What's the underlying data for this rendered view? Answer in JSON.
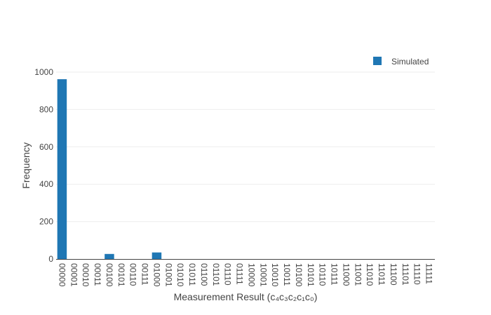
{
  "chart_data": {
    "type": "bar",
    "xlabel": "Measurement Result (c₄c₃c₂c₁c₀)",
    "ylabel": "Frequency",
    "ylim": [
      0,
      1000
    ],
    "yticks": [
      0,
      200,
      400,
      600,
      800,
      1000
    ],
    "grid": true,
    "legend_position": "top-right",
    "categories": [
      "00000",
      "00001",
      "00010",
      "00011",
      "00100",
      "00101",
      "00110",
      "00111",
      "01000",
      "01001",
      "01010",
      "01011",
      "01100",
      "01101",
      "01110",
      "01111",
      "10000",
      "10001",
      "10010",
      "10011",
      "10100",
      "10101",
      "10110",
      "10111",
      "11000",
      "11001",
      "11010",
      "11011",
      "11100",
      "11101",
      "11110",
      "11111"
    ],
    "series": [
      {
        "name": "Simulated",
        "color": "#1f77b4",
        "values": [
          962,
          0,
          0,
          0,
          27,
          0,
          0,
          0,
          35,
          0,
          0,
          0,
          0,
          0,
          0,
          0,
          0,
          0,
          0,
          0,
          0,
          0,
          0,
          0,
          0,
          0,
          0,
          0,
          0,
          0,
          0,
          0
        ]
      }
    ]
  }
}
